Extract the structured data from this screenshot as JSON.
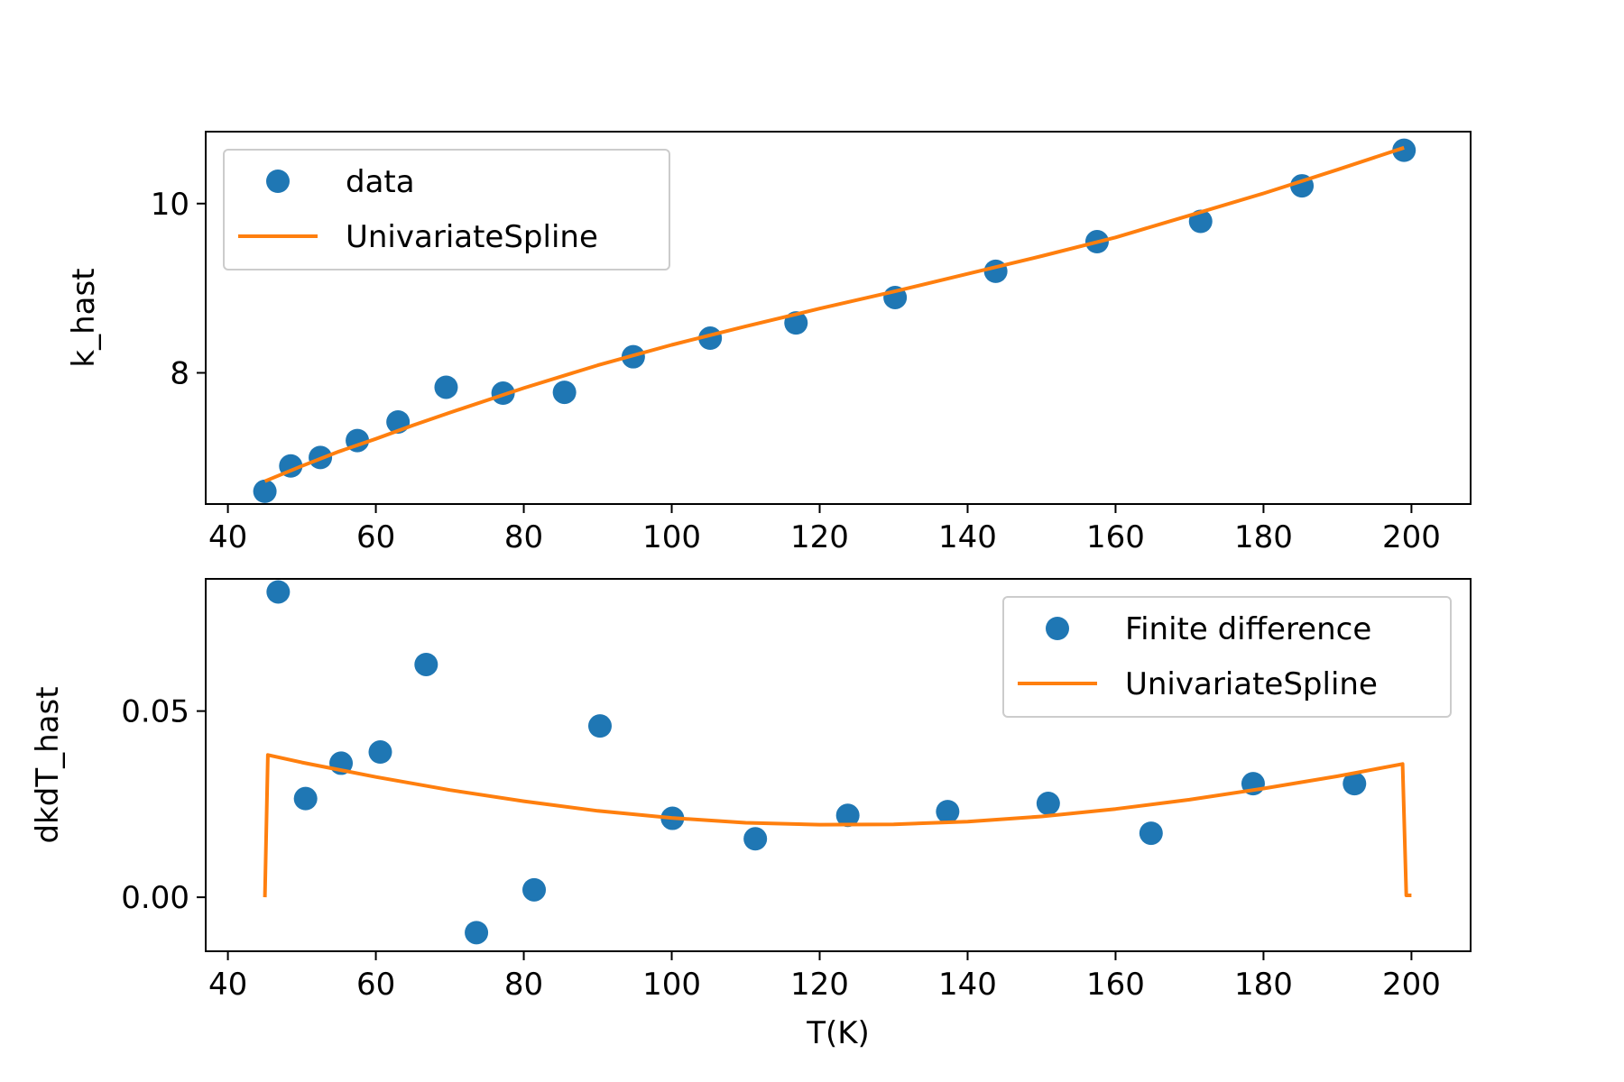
{
  "colors": {
    "data": "#1f77b4",
    "spline": "#ff7f0e",
    "axes": "#000000",
    "legend_border": "#cccccc"
  },
  "chart_data": [
    {
      "type": "line",
      "id": "top",
      "title": "",
      "xlabel": "",
      "ylabel": "k_hast",
      "xlim": [
        37,
        208
      ],
      "ylim": [
        6.45,
        10.85
      ],
      "xticks": [
        40,
        60,
        80,
        100,
        120,
        140,
        160,
        180,
        200
      ],
      "xtick_labels": [
        "40",
        "60",
        "80",
        "100",
        "120",
        "140",
        "160",
        "180",
        "200"
      ],
      "yticks": [
        8,
        10
      ],
      "ytick_labels": [
        "8",
        "10"
      ],
      "legend": {
        "position": "upper-left",
        "entries": [
          "data",
          "UnivariateSpline"
        ]
      },
      "series": [
        {
          "name": "data",
          "kind": "scatter",
          "x": [
            45.0,
            48.5,
            52.5,
            57.5,
            63.0,
            69.5,
            77.2,
            85.5,
            94.8,
            105.2,
            116.8,
            130.2,
            143.8,
            157.5,
            171.5,
            185.2,
            199.0
          ],
          "y": [
            6.6,
            6.9,
            7.0,
            7.2,
            7.42,
            7.83,
            7.76,
            7.77,
            8.19,
            8.41,
            8.59,
            8.89,
            9.2,
            9.55,
            9.79,
            10.21,
            10.63
          ]
        },
        {
          "name": "UnivariateSpline",
          "kind": "line",
          "x": [
            45,
            50,
            55,
            60,
            65,
            70,
            80,
            90,
            100,
            110,
            120,
            130,
            140,
            150,
            160,
            170,
            180,
            190,
            199
          ],
          "y": [
            6.72,
            6.9,
            7.07,
            7.22,
            7.38,
            7.53,
            7.82,
            8.09,
            8.33,
            8.55,
            8.76,
            8.96,
            9.17,
            9.38,
            9.6,
            9.86,
            10.12,
            10.4,
            10.66
          ]
        }
      ]
    },
    {
      "type": "line",
      "id": "bottom",
      "title": "",
      "xlabel": "T(K)",
      "ylabel": "dkdT_hast",
      "xlim": [
        37,
        208
      ],
      "ylim": [
        -0.0145,
        0.0855
      ],
      "xticks": [
        40,
        60,
        80,
        100,
        120,
        140,
        160,
        180,
        200
      ],
      "xtick_labels": [
        "40",
        "60",
        "80",
        "100",
        "120",
        "140",
        "160",
        "180",
        "200"
      ],
      "yticks": [
        0.0,
        0.05
      ],
      "ytick_labels": [
        "0.00",
        "0.05"
      ],
      "legend": {
        "position": "upper-right",
        "entries": [
          "Finite difference",
          "UnivariateSpline"
        ]
      },
      "series": [
        {
          "name": "Finite difference",
          "kind": "scatter",
          "x": [
            46.8,
            50.5,
            55.3,
            60.6,
            66.8,
            73.6,
            81.4,
            90.3,
            100.1,
            111.3,
            123.8,
            137.3,
            150.9,
            164.8,
            178.6,
            192.3
          ],
          "y": [
            0.082,
            0.0265,
            0.036,
            0.039,
            0.0625,
            -0.0095,
            0.002,
            0.046,
            0.0212,
            0.0157,
            0.022,
            0.023,
            0.0252,
            0.0172,
            0.0305,
            0.0305
          ]
        },
        {
          "name": "UnivariateSpline",
          "kind": "line",
          "x": [
            45,
            45.4,
            50,
            60,
            70,
            80,
            90,
            100,
            110,
            120,
            130,
            140,
            150,
            160,
            170,
            180,
            190,
            198.8,
            199.3,
            200
          ],
          "y": [
            0.0,
            0.0382,
            0.0362,
            0.0323,
            0.0288,
            0.0258,
            0.0232,
            0.0213,
            0.02,
            0.0195,
            0.0196,
            0.0203,
            0.0217,
            0.0237,
            0.0262,
            0.0292,
            0.0325,
            0.0358,
            0.0005,
            0.0005
          ]
        }
      ]
    }
  ]
}
